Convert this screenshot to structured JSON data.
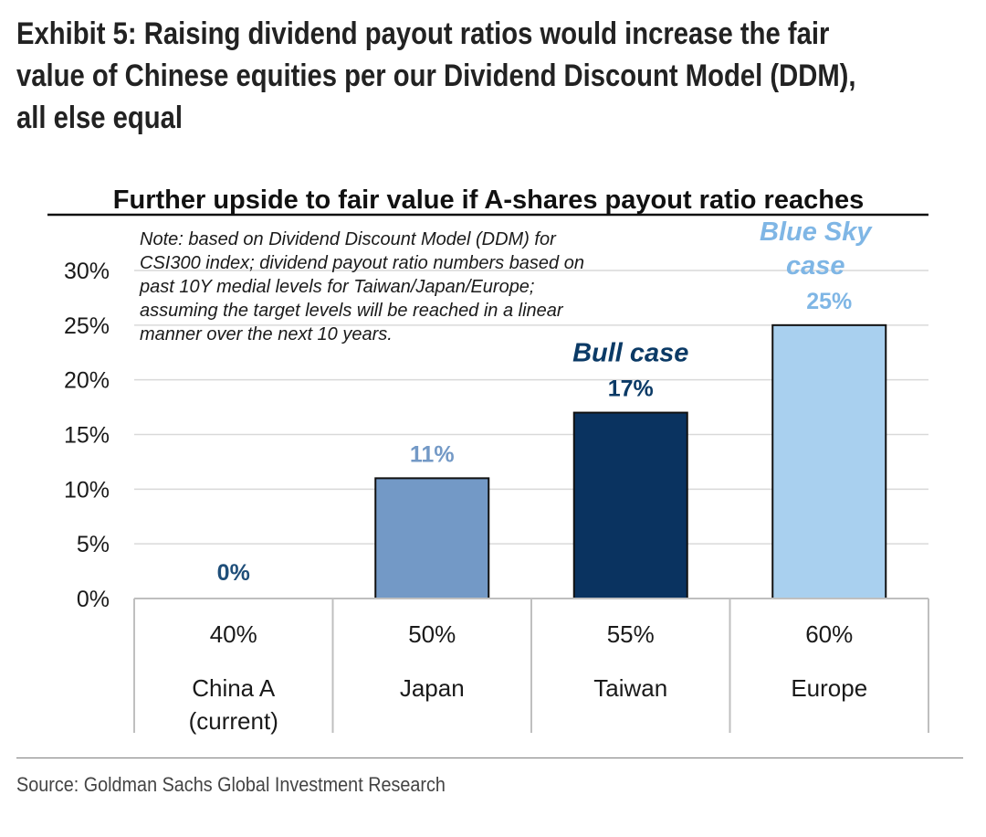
{
  "exhibit": {
    "title_lines": [
      "Exhibit 5: Raising dividend payout ratios would increase the fair",
      "value of Chinese equities per our Dividend Discount Model (DDM),",
      "all else equal"
    ]
  },
  "chart_data": {
    "type": "bar",
    "title": "Further upside to fair value if A-shares payout ratio reaches",
    "categories": [
      "40%\nChina A\n(current)",
      "50%\nJapan",
      "55%\nTaiwan",
      "60%\nEurope"
    ],
    "category_lines": [
      [
        "40%",
        "China A",
        "(current)"
      ],
      [
        "50%",
        "Japan"
      ],
      [
        "55%",
        "Taiwan"
      ],
      [
        "60%",
        "Europe"
      ]
    ],
    "values": [
      0,
      11,
      17,
      25
    ],
    "data_labels": [
      "0%",
      "11%",
      "17%",
      "25%"
    ],
    "bar_colors": [
      "#0b3a66",
      "#7399c6",
      "#0a3360",
      "#a9d0ef"
    ],
    "label_colors": [
      "#1f4e79",
      "#7399c6",
      "#0b3a66",
      "#7fb6e5"
    ],
    "annotations": [
      {
        "text_lines": [
          "Bull case"
        ],
        "category_index": 2,
        "color": "#0b3a66"
      },
      {
        "text_lines": [
          "Blue Sky",
          "case"
        ],
        "category_index": 3,
        "color": "#7fb6e5"
      }
    ],
    "note_lines": [
      "Note: based on Dividend Discount Model (DDM) for",
      "CSI300 index; dividend payout ratio numbers based on",
      "past 10Y medial levels for Taiwan/Japan/Europe;",
      "assuming the target levels will be reached in a linear",
      "manner over the next 10 years."
    ],
    "y_ticks": [
      0,
      5,
      10,
      15,
      20,
      25,
      30
    ],
    "y_tick_labels": [
      "0%",
      "5%",
      "10%",
      "15%",
      "20%",
      "25%",
      "30%"
    ],
    "ylim": [
      0,
      30
    ],
    "xlabel": "",
    "ylabel": "",
    "grid": true,
    "legend": "none"
  },
  "source": "Source: Goldman Sachs Global Investment Research"
}
